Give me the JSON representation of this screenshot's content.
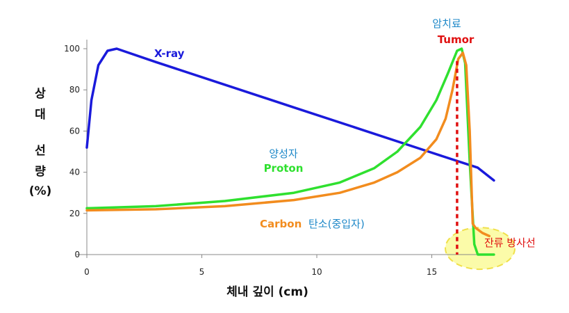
{
  "chart_data": {
    "type": "line",
    "xlabel": "체내 깊이 (cm)",
    "ylabel_lines": [
      "상",
      "대",
      "선",
      "량",
      "(%)"
    ],
    "xlim": [
      0,
      17
    ],
    "ylim": [
      0,
      100
    ],
    "x_ticks": [
      0,
      5,
      10,
      15
    ],
    "y_ticks": [
      0,
      20,
      40,
      60,
      80,
      100
    ],
    "series": [
      {
        "name": "X-ray",
        "color": "#1a1adb",
        "points": [
          [
            0,
            52
          ],
          [
            0.2,
            75
          ],
          [
            0.5,
            92
          ],
          [
            0.9,
            99
          ],
          [
            1.3,
            100
          ],
          [
            3,
            93.5
          ],
          [
            6,
            82.5
          ],
          [
            9,
            71.5
          ],
          [
            12,
            60.5
          ],
          [
            15,
            49.5
          ],
          [
            17,
            42.2
          ],
          [
            17.7,
            36
          ]
        ]
      },
      {
        "name": "Proton",
        "color": "#2fe02f",
        "points": [
          [
            0,
            22.5
          ],
          [
            3,
            23.5
          ],
          [
            6,
            26
          ],
          [
            9,
            30
          ],
          [
            11,
            35
          ],
          [
            12.5,
            42
          ],
          [
            13.5,
            50
          ],
          [
            14.5,
            62
          ],
          [
            15.2,
            75
          ],
          [
            15.7,
            88
          ],
          [
            16.1,
            99
          ],
          [
            16.3,
            100
          ],
          [
            16.45,
            93
          ],
          [
            16.65,
            45
          ],
          [
            16.85,
            5
          ],
          [
            17,
            0
          ],
          [
            17.7,
            0
          ]
        ]
      },
      {
        "name": "Carbon",
        "color": "#f28c1e",
        "points": [
          [
            0,
            21.5
          ],
          [
            3,
            22
          ],
          [
            6,
            23.5
          ],
          [
            9,
            26.5
          ],
          [
            11,
            30
          ],
          [
            12.5,
            35
          ],
          [
            13.5,
            40
          ],
          [
            14.5,
            47
          ],
          [
            15.2,
            56
          ],
          [
            15.6,
            66
          ],
          [
            15.9,
            80
          ],
          [
            16.15,
            95
          ],
          [
            16.35,
            98
          ],
          [
            16.5,
            92
          ],
          [
            16.65,
            60
          ],
          [
            16.78,
            15
          ],
          [
            16.9,
            13
          ],
          [
            17.2,
            10.5
          ],
          [
            17.5,
            9
          ]
        ]
      }
    ],
    "annotations": {
      "xray_label": "X-ray",
      "proton_ko": "양성자",
      "proton_en": "Proton",
      "carbon_en": "Carbon",
      "carbon_ko": "탄소(중입자)",
      "tumor_ko": "암치료",
      "tumor_en": "Tumor",
      "residual": "잔류 방사선"
    },
    "tumor_x": 16.1,
    "residual_ellipse_center": [
      17.1,
      3
    ],
    "colors": {
      "tumor_ko": "#1e88c8",
      "tumor_en": "#e01010",
      "proton_ko": "#1e88c8",
      "carbon_ko": "#1e88c8",
      "residual": "#e01010",
      "tumor_line": "#e01010",
      "ellipse_fill": "#fafa8c",
      "ellipse_stroke": "#f0e04a"
    },
    "grid": false
  }
}
